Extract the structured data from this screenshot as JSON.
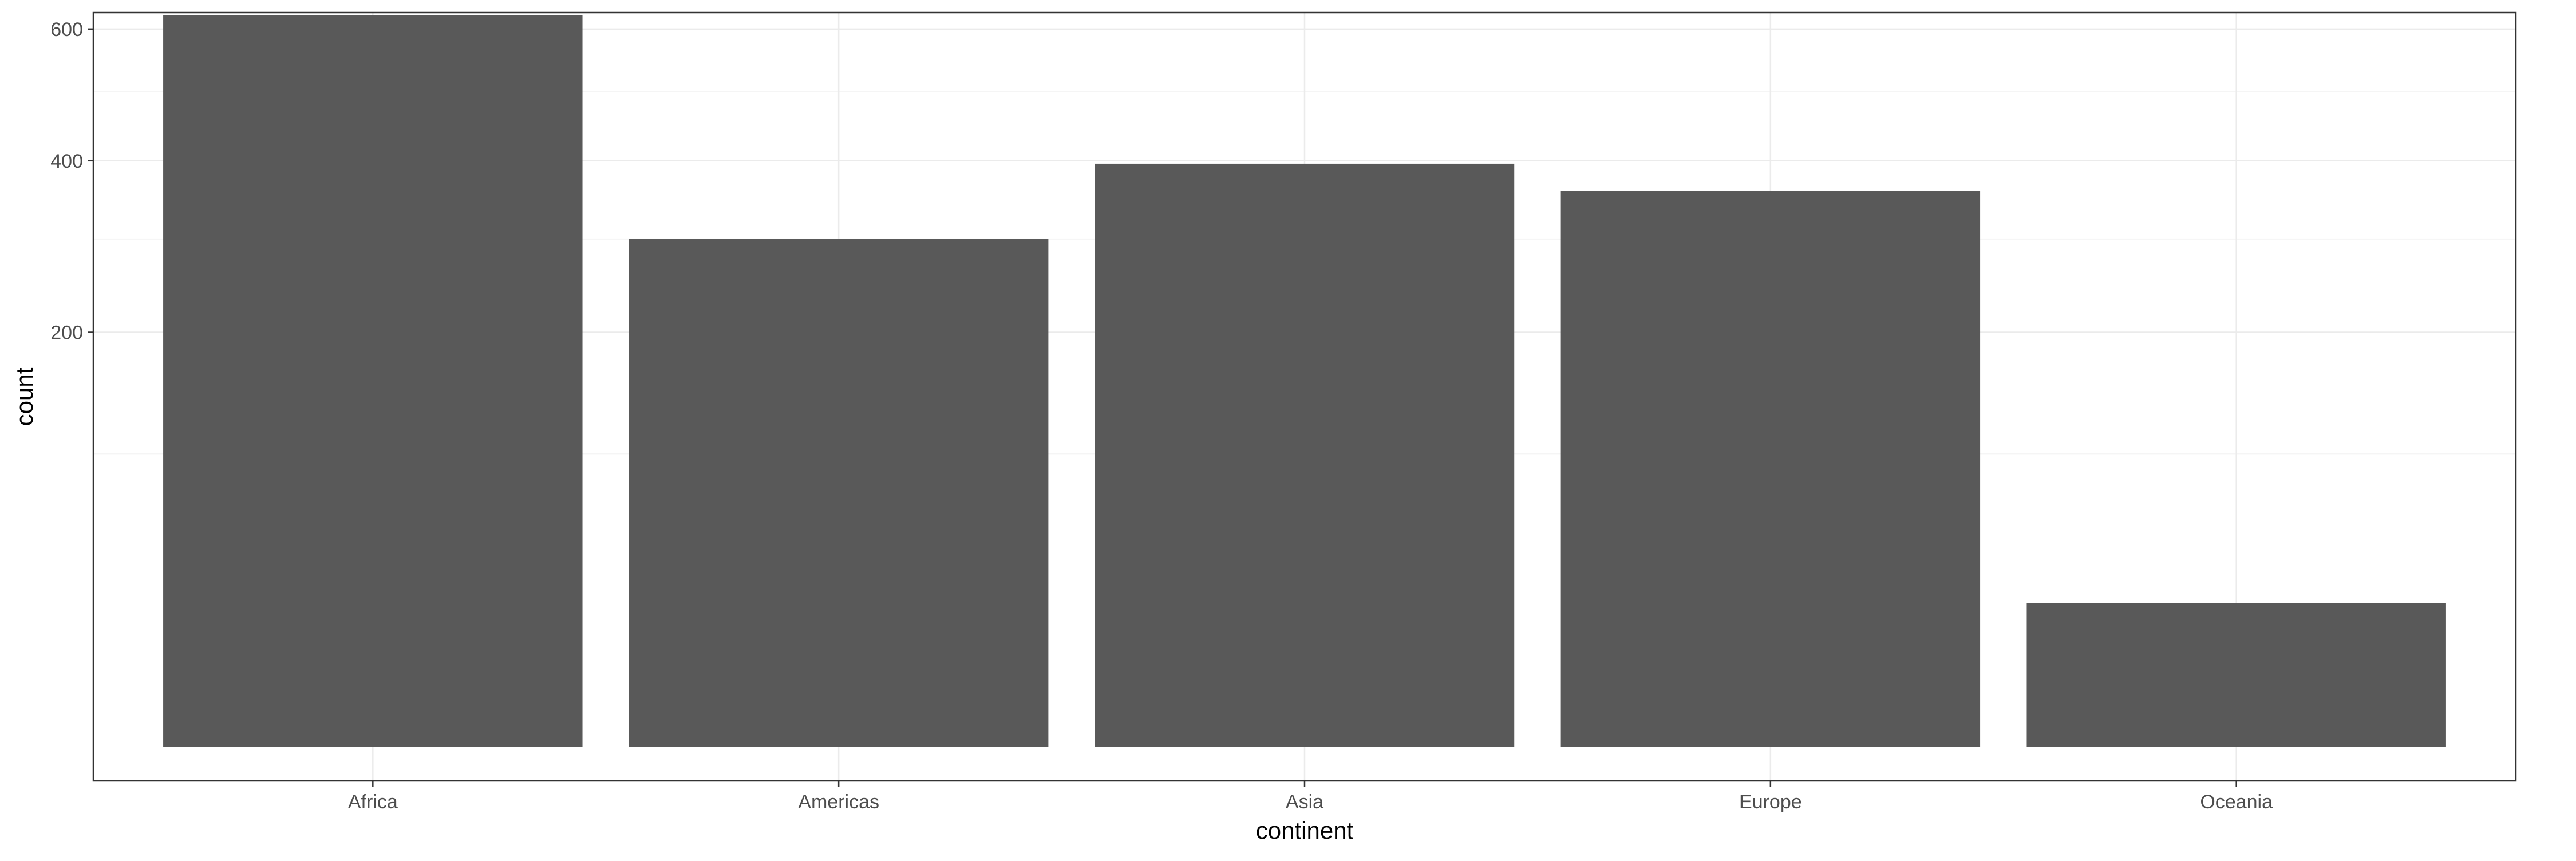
{
  "chart_data": {
    "type": "bar",
    "title": "",
    "xlabel": "continent",
    "ylabel": "count",
    "categories": [
      "Africa",
      "Americas",
      "Asia",
      "Europe",
      "Oceania"
    ],
    "values": [
      624,
      300,
      396,
      360,
      24
    ],
    "y_scale": "sqrt",
    "ylim": [
      0,
      660
    ],
    "y_ticks": [
      200,
      400,
      600
    ],
    "y_minor_ticks": [
      100,
      300,
      500
    ],
    "grid": true,
    "legend": "none",
    "colors": {
      "bar": "#595959",
      "panel_border": "#333333",
      "grid_major": "#ebebeb",
      "grid_minor": "#f5f5f5",
      "tick_text": "#4d4d4d",
      "axis_title": "#000000"
    }
  }
}
